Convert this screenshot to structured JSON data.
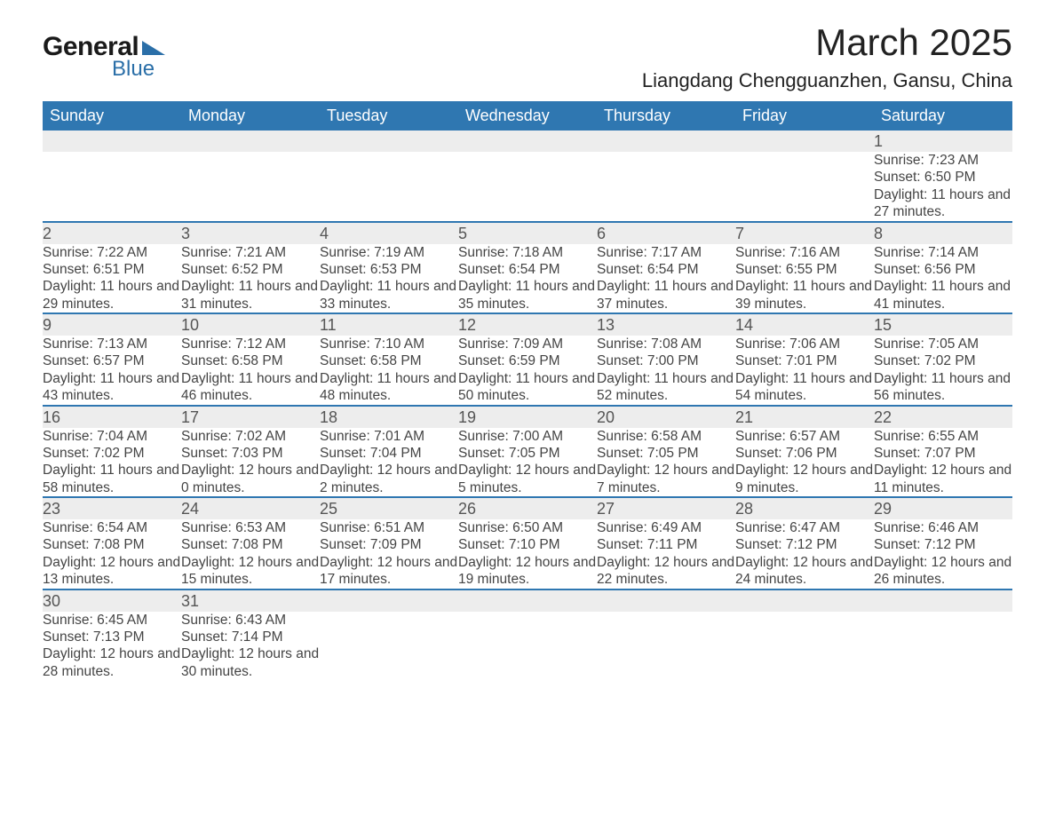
{
  "logo": {
    "text1": "General",
    "text2": "Blue"
  },
  "title": "March 2025",
  "location": "Liangdang Chengguanzhen, Gansu, China",
  "colors": {
    "header_bg": "#2f77b1",
    "header_fg": "#ffffff",
    "row_divider": "#2f77b1",
    "daynum_bg": "#ededed",
    "text": "#444444",
    "logo_accent": "#2b6fa8"
  },
  "day_headers": [
    "Sunday",
    "Monday",
    "Tuesday",
    "Wednesday",
    "Thursday",
    "Friday",
    "Saturday"
  ],
  "weeks": [
    [
      null,
      null,
      null,
      null,
      null,
      null,
      {
        "n": "1",
        "sr": "7:23 AM",
        "ss": "6:50 PM",
        "dl": "11 hours and 27 minutes."
      }
    ],
    [
      {
        "n": "2",
        "sr": "7:22 AM",
        "ss": "6:51 PM",
        "dl": "11 hours and 29 minutes."
      },
      {
        "n": "3",
        "sr": "7:21 AM",
        "ss": "6:52 PM",
        "dl": "11 hours and 31 minutes."
      },
      {
        "n": "4",
        "sr": "7:19 AM",
        "ss": "6:53 PM",
        "dl": "11 hours and 33 minutes."
      },
      {
        "n": "5",
        "sr": "7:18 AM",
        "ss": "6:54 PM",
        "dl": "11 hours and 35 minutes."
      },
      {
        "n": "6",
        "sr": "7:17 AM",
        "ss": "6:54 PM",
        "dl": "11 hours and 37 minutes."
      },
      {
        "n": "7",
        "sr": "7:16 AM",
        "ss": "6:55 PM",
        "dl": "11 hours and 39 minutes."
      },
      {
        "n": "8",
        "sr": "7:14 AM",
        "ss": "6:56 PM",
        "dl": "11 hours and 41 minutes."
      }
    ],
    [
      {
        "n": "9",
        "sr": "7:13 AM",
        "ss": "6:57 PM",
        "dl": "11 hours and 43 minutes."
      },
      {
        "n": "10",
        "sr": "7:12 AM",
        "ss": "6:58 PM",
        "dl": "11 hours and 46 minutes."
      },
      {
        "n": "11",
        "sr": "7:10 AM",
        "ss": "6:58 PM",
        "dl": "11 hours and 48 minutes."
      },
      {
        "n": "12",
        "sr": "7:09 AM",
        "ss": "6:59 PM",
        "dl": "11 hours and 50 minutes."
      },
      {
        "n": "13",
        "sr": "7:08 AM",
        "ss": "7:00 PM",
        "dl": "11 hours and 52 minutes."
      },
      {
        "n": "14",
        "sr": "7:06 AM",
        "ss": "7:01 PM",
        "dl": "11 hours and 54 minutes."
      },
      {
        "n": "15",
        "sr": "7:05 AM",
        "ss": "7:02 PM",
        "dl": "11 hours and 56 minutes."
      }
    ],
    [
      {
        "n": "16",
        "sr": "7:04 AM",
        "ss": "7:02 PM",
        "dl": "11 hours and 58 minutes."
      },
      {
        "n": "17",
        "sr": "7:02 AM",
        "ss": "7:03 PM",
        "dl": "12 hours and 0 minutes."
      },
      {
        "n": "18",
        "sr": "7:01 AM",
        "ss": "7:04 PM",
        "dl": "12 hours and 2 minutes."
      },
      {
        "n": "19",
        "sr": "7:00 AM",
        "ss": "7:05 PM",
        "dl": "12 hours and 5 minutes."
      },
      {
        "n": "20",
        "sr": "6:58 AM",
        "ss": "7:05 PM",
        "dl": "12 hours and 7 minutes."
      },
      {
        "n": "21",
        "sr": "6:57 AM",
        "ss": "7:06 PM",
        "dl": "12 hours and 9 minutes."
      },
      {
        "n": "22",
        "sr": "6:55 AM",
        "ss": "7:07 PM",
        "dl": "12 hours and 11 minutes."
      }
    ],
    [
      {
        "n": "23",
        "sr": "6:54 AM",
        "ss": "7:08 PM",
        "dl": "12 hours and 13 minutes."
      },
      {
        "n": "24",
        "sr": "6:53 AM",
        "ss": "7:08 PM",
        "dl": "12 hours and 15 minutes."
      },
      {
        "n": "25",
        "sr": "6:51 AM",
        "ss": "7:09 PM",
        "dl": "12 hours and 17 minutes."
      },
      {
        "n": "26",
        "sr": "6:50 AM",
        "ss": "7:10 PM",
        "dl": "12 hours and 19 minutes."
      },
      {
        "n": "27",
        "sr": "6:49 AM",
        "ss": "7:11 PM",
        "dl": "12 hours and 22 minutes."
      },
      {
        "n": "28",
        "sr": "6:47 AM",
        "ss": "7:12 PM",
        "dl": "12 hours and 24 minutes."
      },
      {
        "n": "29",
        "sr": "6:46 AM",
        "ss": "7:12 PM",
        "dl": "12 hours and 26 minutes."
      }
    ],
    [
      {
        "n": "30",
        "sr": "6:45 AM",
        "ss": "7:13 PM",
        "dl": "12 hours and 28 minutes."
      },
      {
        "n": "31",
        "sr": "6:43 AM",
        "ss": "7:14 PM",
        "dl": "12 hours and 30 minutes."
      },
      null,
      null,
      null,
      null,
      null
    ]
  ],
  "labels": {
    "sunrise": "Sunrise:",
    "sunset": "Sunset:",
    "daylight": "Daylight:"
  }
}
